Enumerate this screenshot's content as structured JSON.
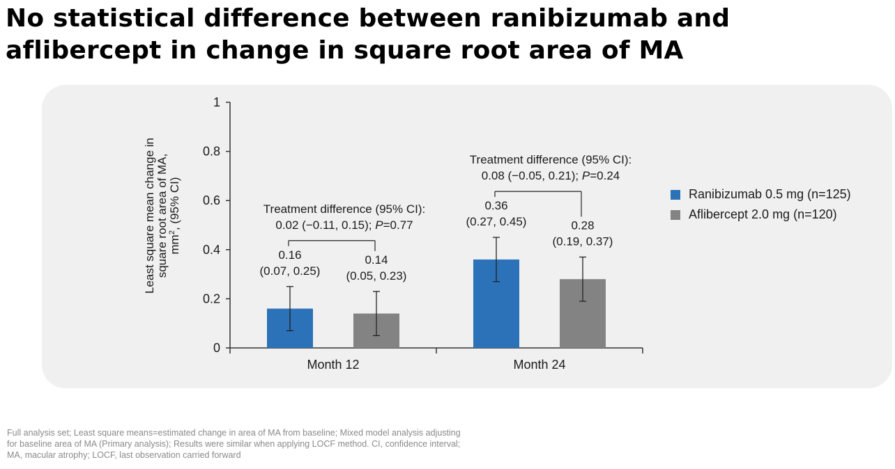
{
  "title_line1": "No statistical difference between ranibizumab and",
  "title_line2": "aflibercept in change in square root area of MA",
  "footnote": "Full analysis set; Least square means=estimated change in area of MA from baseline; Mixed model analysis adjusting for baseline area of MA (Primary analysis); Results were similar when applying LOCF method. CI, confidence interval; MA, macular atrophy; LOCF, last observation carried forward",
  "colors": {
    "ranibizumab": "#2b72b8",
    "aflibercept": "#838383"
  },
  "chart_data": {
    "type": "bar",
    "categories": [
      "Month 12",
      "Month 24"
    ],
    "ylabel_line1": "Least square mean change in",
    "ylabel_line2": "square root area of MA,",
    "ylabel_line3_pre": "mm",
    "ylabel_line3_sup": "2",
    "ylabel_line3_post": ", (95% CI)",
    "ylim": [
      0,
      1
    ],
    "yticks": [
      0,
      0.2,
      0.4,
      0.6,
      0.8,
      1
    ],
    "ytick_labels": [
      "0",
      "0.2",
      "0.4",
      "0.6",
      "0.8",
      "1"
    ],
    "legend_position": "right",
    "series": [
      {
        "name": "Ranibizumab 0.5 mg (n=125)",
        "values": [
          0.16,
          0.36
        ],
        "ci_low": [
          0.07,
          0.27
        ],
        "ci_high": [
          0.25,
          0.45
        ],
        "value_labels": [
          "0.16",
          "0.36"
        ],
        "ci_labels": [
          "(0.07, 0.25)",
          "(0.27, 0.45)"
        ]
      },
      {
        "name": "Aflibercept 2.0 mg (n=120)",
        "values": [
          0.14,
          0.28
        ],
        "ci_low": [
          0.05,
          0.19
        ],
        "ci_high": [
          0.23,
          0.37
        ],
        "value_labels": [
          "0.14",
          "0.28"
        ],
        "ci_labels": [
          "(0.05, 0.23)",
          "(0.19, 0.37)"
        ]
      }
    ],
    "treatment_differences": [
      {
        "line1": "Treatment difference (95% CI):",
        "line2_pre": "0.02 (−0.11, 0.15); ",
        "p_label": "P",
        "line2_post": "=0.77"
      },
      {
        "line1": "Treatment difference (95% CI):",
        "line2_pre": "0.08 (−0.05, 0.21); ",
        "p_label": "P",
        "line2_post": "=0.24"
      }
    ]
  }
}
